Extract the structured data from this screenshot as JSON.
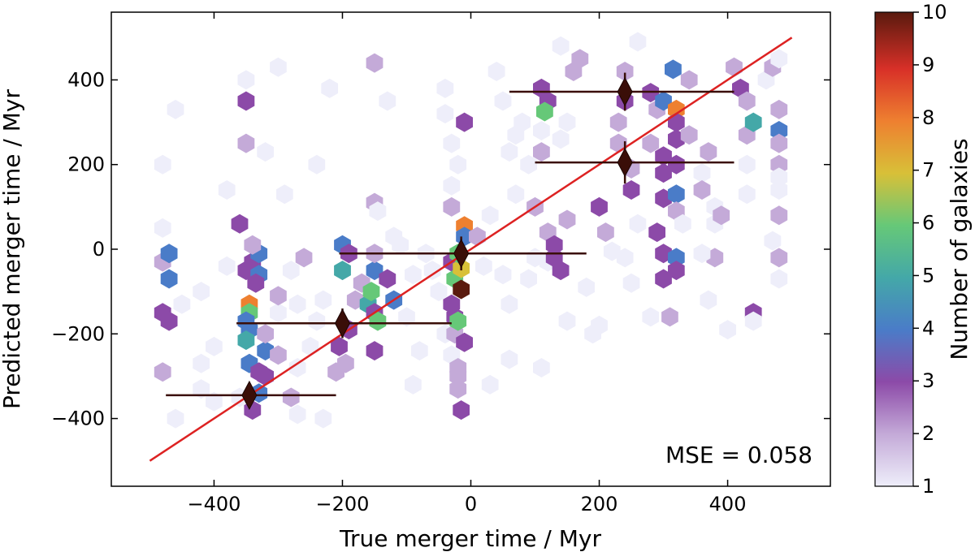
{
  "chart_data": {
    "type": "hexbin",
    "xlabel": "True merger time / Myr",
    "ylabel": "Predicted merger time / Myr",
    "xlim": [
      -560,
      560
    ],
    "ylim": [
      -560,
      560
    ],
    "xticks": [
      -400,
      -200,
      0,
      200,
      400
    ],
    "yticks": [
      -400,
      -200,
      0,
      200,
      400
    ],
    "xtick_labels": [
      "−400",
      "−200",
      "0",
      "200",
      "400"
    ],
    "ytick_labels": [
      "−400",
      "−200",
      "0",
      "200",
      "400"
    ],
    "annotation": "MSE = 0.058",
    "colorbar": {
      "label": "Number of galaxies",
      "range": [
        1,
        10
      ],
      "ticks": [
        1,
        2,
        3,
        4,
        5,
        6,
        7,
        8,
        9,
        10
      ],
      "tick_labels": [
        "1",
        "2",
        "3",
        "4",
        "5",
        "6",
        "7",
        "8",
        "9",
        "10"
      ],
      "colormap": [
        "#eeeefa",
        "#c4aad8",
        "#8c4aa8",
        "#4a7cc8",
        "#44a8a8",
        "#66c878",
        "#d8c038",
        "#ee8030",
        "#d83028",
        "#5a1a0e"
      ]
    },
    "one_to_one_line": {
      "x": [
        -500,
        500
      ],
      "y": [
        -500,
        500
      ],
      "color": "#dd2222"
    },
    "binned_means": [
      {
        "x": -345,
        "y": -345,
        "xerr_low": -475,
        "xerr_high": -210,
        "yerr": 28
      },
      {
        "x": -200,
        "y": -175,
        "xerr_low": -365,
        "xerr_high": -30,
        "yerr": 35
      },
      {
        "x": -15,
        "y": -10,
        "xerr_low": -205,
        "xerr_high": 180,
        "yerr": 40
      },
      {
        "x": 240,
        "y": 205,
        "xerr_low": 100,
        "xerr_high": 410,
        "yerr": 50
      },
      {
        "x": 240,
        "y": 372,
        "xerr_low": 60,
        "xerr_high": 410,
        "yerr": 45
      }
    ],
    "hexbins": [
      {
        "x": -480,
        "y": -150,
        "count": 3
      },
      {
        "x": -470,
        "y": -170,
        "count": 3
      },
      {
        "x": -480,
        "y": -30,
        "count": 2
      },
      {
        "x": -470,
        "y": -10,
        "count": 4
      },
      {
        "x": -470,
        "y": -70,
        "count": 4
      },
      {
        "x": -480,
        "y": -290,
        "count": 2
      },
      {
        "x": -480,
        "y": 200,
        "count": 1
      },
      {
        "x": -480,
        "y": 50,
        "count": 1
      },
      {
        "x": -460,
        "y": 330,
        "count": 1
      },
      {
        "x": -460,
        "y": -400,
        "count": 1
      },
      {
        "x": -450,
        "y": -130,
        "count": 1
      },
      {
        "x": -420,
        "y": -270,
        "count": 1
      },
      {
        "x": -420,
        "y": -330,
        "count": 1
      },
      {
        "x": -400,
        "y": -230,
        "count": 1
      },
      {
        "x": -400,
        "y": -360,
        "count": 1
      },
      {
        "x": -380,
        "y": -40,
        "count": 1
      },
      {
        "x": -380,
        "y": 140,
        "count": 1
      },
      {
        "x": -360,
        "y": -350,
        "count": 1
      },
      {
        "x": -350,
        "y": -50,
        "count": 3
      },
      {
        "x": -345,
        "y": -130,
        "count": 8
      },
      {
        "x": -345,
        "y": -150,
        "count": 6
      },
      {
        "x": -350,
        "y": -170,
        "count": 4
      },
      {
        "x": -345,
        "y": -190,
        "count": 4
      },
      {
        "x": -350,
        "y": -215,
        "count": 5
      },
      {
        "x": -340,
        "y": -30,
        "count": 3
      },
      {
        "x": -330,
        "y": -60,
        "count": 4
      },
      {
        "x": -335,
        "y": -80,
        "count": 3
      },
      {
        "x": -330,
        "y": -10,
        "count": 4
      },
      {
        "x": -345,
        "y": -270,
        "count": 4
      },
      {
        "x": -330,
        "y": -290,
        "count": 3
      },
      {
        "x": -320,
        "y": -300,
        "count": 3
      },
      {
        "x": -340,
        "y": -380,
        "count": 3
      },
      {
        "x": -330,
        "y": -340,
        "count": 4
      },
      {
        "x": -320,
        "y": -240,
        "count": 4
      },
      {
        "x": -320,
        "y": -200,
        "count": 2
      },
      {
        "x": -350,
        "y": 350,
        "count": 3
      },
      {
        "x": -350,
        "y": 250,
        "count": 2
      },
      {
        "x": -360,
        "y": 60,
        "count": 3
      },
      {
        "x": -340,
        "y": 10,
        "count": 2
      },
      {
        "x": -350,
        "y": 400,
        "count": 1
      },
      {
        "x": -320,
        "y": 230,
        "count": 1
      },
      {
        "x": -300,
        "y": 430,
        "count": 1
      },
      {
        "x": -300,
        "y": -150,
        "count": 1
      },
      {
        "x": -300,
        "y": -110,
        "count": 2
      },
      {
        "x": -280,
        "y": -350,
        "count": 2
      },
      {
        "x": -280,
        "y": -50,
        "count": 1
      },
      {
        "x": -270,
        "y": -390,
        "count": 1
      },
      {
        "x": -290,
        "y": 130,
        "count": 1
      },
      {
        "x": -260,
        "y": -20,
        "count": 2
      },
      {
        "x": -250,
        "y": -230,
        "count": 1
      },
      {
        "x": -240,
        "y": 200,
        "count": 1
      },
      {
        "x": -230,
        "y": -400,
        "count": 1
      },
      {
        "x": -220,
        "y": 380,
        "count": 1
      },
      {
        "x": -210,
        "y": -290,
        "count": 2
      },
      {
        "x": -200,
        "y": 10,
        "count": 4
      },
      {
        "x": -200,
        "y": -50,
        "count": 5
      },
      {
        "x": -190,
        "y": -10,
        "count": 3
      },
      {
        "x": -190,
        "y": -190,
        "count": 3
      },
      {
        "x": -205,
        "y": -230,
        "count": 3
      },
      {
        "x": -195,
        "y": -270,
        "count": 2
      },
      {
        "x": -180,
        "y": -120,
        "count": 2
      },
      {
        "x": -170,
        "y": -80,
        "count": 2
      },
      {
        "x": -160,
        "y": -130,
        "count": 5
      },
      {
        "x": -155,
        "y": -100,
        "count": 6
      },
      {
        "x": -150,
        "y": -150,
        "count": 3
      },
      {
        "x": -145,
        "y": -170,
        "count": 6
      },
      {
        "x": -150,
        "y": -240,
        "count": 3
      },
      {
        "x": -150,
        "y": -50,
        "count": 4
      },
      {
        "x": -150,
        "y": -10,
        "count": 2
      },
      {
        "x": -150,
        "y": 110,
        "count": 2
      },
      {
        "x": -145,
        "y": 90,
        "count": 1
      },
      {
        "x": -130,
        "y": -70,
        "count": 3
      },
      {
        "x": -120,
        "y": -120,
        "count": 4
      },
      {
        "x": -120,
        "y": 30,
        "count": 1
      },
      {
        "x": -150,
        "y": 440,
        "count": 2
      },
      {
        "x": -130,
        "y": 350,
        "count": 1
      },
      {
        "x": -90,
        "y": -320,
        "count": 1
      },
      {
        "x": -80,
        "y": -240,
        "count": 1
      },
      {
        "x": -70,
        "y": -10,
        "count": 1
      },
      {
        "x": -60,
        "y": -50,
        "count": 1
      },
      {
        "x": -50,
        "y": -100,
        "count": 1
      },
      {
        "x": -40,
        "y": 380,
        "count": 1
      },
      {
        "x": -40,
        "y": -200,
        "count": 1
      },
      {
        "x": -30,
        "y": -30,
        "count": 3
      },
      {
        "x": -30,
        "y": -130,
        "count": 3
      },
      {
        "x": -25,
        "y": -160,
        "count": 3
      },
      {
        "x": -25,
        "y": -200,
        "count": 2
      },
      {
        "x": -30,
        "y": -250,
        "count": 1
      },
      {
        "x": -20,
        "y": -170,
        "count": 6
      },
      {
        "x": -25,
        "y": -70,
        "count": 6
      },
      {
        "x": -15,
        "y": -45,
        "count": 7
      },
      {
        "x": -20,
        "y": -10,
        "count": 6
      },
      {
        "x": -15,
        "y": -95,
        "count": 10
      },
      {
        "x": -10,
        "y": 55,
        "count": 8
      },
      {
        "x": -10,
        "y": 300,
        "count": 3
      },
      {
        "x": -20,
        "y": -280,
        "count": 2
      },
      {
        "x": -20,
        "y": -300,
        "count": 2
      },
      {
        "x": -20,
        "y": -330,
        "count": 2
      },
      {
        "x": -15,
        "y": -380,
        "count": 3
      },
      {
        "x": -10,
        "y": -220,
        "count": 3
      },
      {
        "x": -10,
        "y": 30,
        "count": 4
      },
      {
        "x": -30,
        "y": 100,
        "count": 2
      },
      {
        "x": -30,
        "y": 250,
        "count": 1
      },
      {
        "x": -30,
        "y": 150,
        "count": 1
      },
      {
        "x": -20,
        "y": 200,
        "count": 1
      },
      {
        "x": -40,
        "y": 320,
        "count": 1
      },
      {
        "x": 10,
        "y": 30,
        "count": 2
      },
      {
        "x": 20,
        "y": -40,
        "count": 1
      },
      {
        "x": 30,
        "y": 80,
        "count": 1
      },
      {
        "x": 50,
        "y": -60,
        "count": 1
      },
      {
        "x": 60,
        "y": -130,
        "count": 1
      },
      {
        "x": 70,
        "y": 130,
        "count": 1
      },
      {
        "x": 60,
        "y": 230,
        "count": 1
      },
      {
        "x": 70,
        "y": 270,
        "count": 1
      },
      {
        "x": 90,
        "y": -70,
        "count": 1
      },
      {
        "x": 90,
        "y": 200,
        "count": 1
      },
      {
        "x": 100,
        "y": -20,
        "count": 1
      },
      {
        "x": 110,
        "y": 380,
        "count": 3
      },
      {
        "x": 120,
        "y": 350,
        "count": 3
      },
      {
        "x": 115,
        "y": 325,
        "count": 6
      },
      {
        "x": 110,
        "y": 280,
        "count": 1
      },
      {
        "x": 110,
        "y": 230,
        "count": 2
      },
      {
        "x": 100,
        "y": 100,
        "count": 2
      },
      {
        "x": 120,
        "y": 40,
        "count": 2
      },
      {
        "x": 130,
        "y": 10,
        "count": 3
      },
      {
        "x": 120,
        "y": -30,
        "count": 1
      },
      {
        "x": 140,
        "y": -50,
        "count": 3
      },
      {
        "x": 130,
        "y": -20,
        "count": 3
      },
      {
        "x": 150,
        "y": 70,
        "count": 2
      },
      {
        "x": 140,
        "y": 260,
        "count": 1
      },
      {
        "x": 150,
        "y": 300,
        "count": 1
      },
      {
        "x": 160,
        "y": 420,
        "count": 2
      },
      {
        "x": 170,
        "y": 450,
        "count": 2
      },
      {
        "x": 180,
        "y": -90,
        "count": 1
      },
      {
        "x": 190,
        "y": -200,
        "count": 1
      },
      {
        "x": 200,
        "y": 100,
        "count": 3
      },
      {
        "x": 210,
        "y": 40,
        "count": 2
      },
      {
        "x": 220,
        "y": -5,
        "count": 1
      },
      {
        "x": 230,
        "y": 250,
        "count": 2
      },
      {
        "x": 230,
        "y": 300,
        "count": 2
      },
      {
        "x": 240,
        "y": 420,
        "count": 2
      },
      {
        "x": 240,
        "y": 350,
        "count": 3
      },
      {
        "x": 250,
        "y": 140,
        "count": 3
      },
      {
        "x": 250,
        "y": 190,
        "count": 2
      },
      {
        "x": 260,
        "y": 60,
        "count": 1
      },
      {
        "x": 240,
        "y": -20,
        "count": 1
      },
      {
        "x": 250,
        "y": -80,
        "count": 1
      },
      {
        "x": 280,
        "y": 250,
        "count": 2
      },
      {
        "x": 280,
        "y": 370,
        "count": 3
      },
      {
        "x": 290,
        "y": 330,
        "count": 2
      },
      {
        "x": 300,
        "y": 350,
        "count": 4
      },
      {
        "x": 300,
        "y": 220,
        "count": 3
      },
      {
        "x": 300,
        "y": 180,
        "count": 3
      },
      {
        "x": 300,
        "y": 120,
        "count": 3
      },
      {
        "x": 290,
        "y": 40,
        "count": 3
      },
      {
        "x": 300,
        "y": -10,
        "count": 3
      },
      {
        "x": 300,
        "y": -70,
        "count": 3
      },
      {
        "x": 310,
        "y": -160,
        "count": 2
      },
      {
        "x": 315,
        "y": 425,
        "count": 4
      },
      {
        "x": 320,
        "y": 330,
        "count": 8
      },
      {
        "x": 320,
        "y": 300,
        "count": 3
      },
      {
        "x": 320,
        "y": 260,
        "count": 3
      },
      {
        "x": 320,
        "y": 200,
        "count": 3
      },
      {
        "x": 320,
        "y": 130,
        "count": 4
      },
      {
        "x": 320,
        "y": 90,
        "count": 2
      },
      {
        "x": 320,
        "y": -20,
        "count": 4
      },
      {
        "x": 320,
        "y": -50,
        "count": 3
      },
      {
        "x": 330,
        "y": 60,
        "count": 1
      },
      {
        "x": 340,
        "y": 270,
        "count": 2
      },
      {
        "x": 340,
        "y": 400,
        "count": 2
      },
      {
        "x": 360,
        "y": 180,
        "count": 1
      },
      {
        "x": 360,
        "y": 140,
        "count": 2
      },
      {
        "x": 370,
        "y": 230,
        "count": 2
      },
      {
        "x": 380,
        "y": 100,
        "count": 1
      },
      {
        "x": 380,
        "y": 60,
        "count": 1
      },
      {
        "x": 380,
        "y": -20,
        "count": 2
      },
      {
        "x": 390,
        "y": 80,
        "count": 2
      },
      {
        "x": 400,
        "y": -190,
        "count": 1
      },
      {
        "x": 410,
        "y": 430,
        "count": 2
      },
      {
        "x": 420,
        "y": 380,
        "count": 3
      },
      {
        "x": 430,
        "y": 350,
        "count": 2
      },
      {
        "x": 430,
        "y": 270,
        "count": 2
      },
      {
        "x": 440,
        "y": 300,
        "count": 5
      },
      {
        "x": 430,
        "y": 200,
        "count": 1
      },
      {
        "x": 430,
        "y": 130,
        "count": 1
      },
      {
        "x": 440,
        "y": -150,
        "count": 3
      },
      {
        "x": 440,
        "y": -170,
        "count": 1
      },
      {
        "x": 460,
        "y": 400,
        "count": 1
      },
      {
        "x": 470,
        "y": 430,
        "count": 2
      },
      {
        "x": 480,
        "y": 330,
        "count": 2
      },
      {
        "x": 480,
        "y": 280,
        "count": 4
      },
      {
        "x": 480,
        "y": 250,
        "count": 2
      },
      {
        "x": 480,
        "y": 200,
        "count": 2
      },
      {
        "x": 480,
        "y": 170,
        "count": 1
      },
      {
        "x": 480,
        "y": 140,
        "count": 1
      },
      {
        "x": 480,
        "y": 80,
        "count": 2
      },
      {
        "x": 480,
        "y": -20,
        "count": 2
      },
      {
        "x": 480,
        "y": -70,
        "count": 1
      },
      {
        "x": 470,
        "y": 20,
        "count": 1
      },
      {
        "x": 480,
        "y": 450,
        "count": 1
      },
      {
        "x": 370,
        "y": -120,
        "count": 1
      },
      {
        "x": 360,
        "y": -10,
        "count": 1
      },
      {
        "x": -270,
        "y": -130,
        "count": 1
      },
      {
        "x": -240,
        "y": -170,
        "count": 1
      },
      {
        "x": -230,
        "y": -120,
        "count": 1
      },
      {
        "x": -100,
        "y": -160,
        "count": 1
      },
      {
        "x": -90,
        "y": -60,
        "count": 1
      },
      {
        "x": -110,
        "y": 10,
        "count": 1
      },
      {
        "x": -420,
        "y": -100,
        "count": 1
      },
      {
        "x": -300,
        "y": -250,
        "count": 2
      },
      {
        "x": -270,
        "y": -280,
        "count": 1
      },
      {
        "x": 50,
        "y": 350,
        "count": 1
      },
      {
        "x": 40,
        "y": 420,
        "count": 1
      },
      {
        "x": 80,
        "y": 300,
        "count": 1
      },
      {
        "x": 30,
        "y": -320,
        "count": 1
      },
      {
        "x": 60,
        "y": -260,
        "count": 1
      },
      {
        "x": 200,
        "y": -180,
        "count": 1
      },
      {
        "x": 280,
        "y": -160,
        "count": 1
      },
      {
        "x": 150,
        "y": -170,
        "count": 1
      },
      {
        "x": 260,
        "y": 490,
        "count": 1
      },
      {
        "x": 140,
        "y": 480,
        "count": 1
      },
      {
        "x": 110,
        "y": -280,
        "count": 1
      }
    ]
  }
}
